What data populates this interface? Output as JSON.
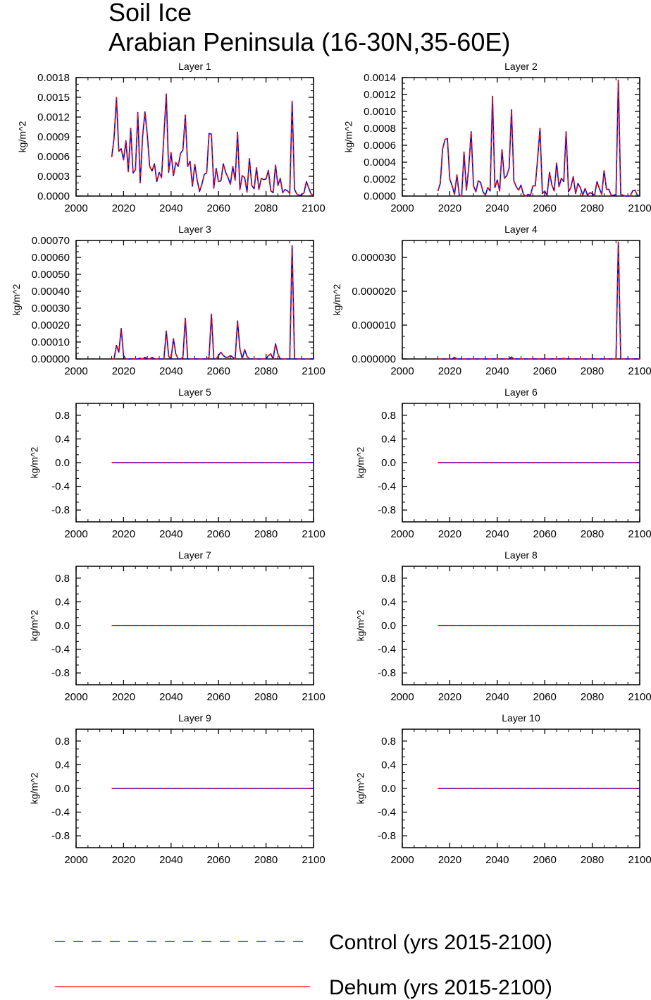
{
  "figure": {
    "title_line1": "Soil Ice",
    "title_line2": "Arabian Peninsula (16-30N,35-60E)"
  },
  "legend": [
    {
      "name": "Control (yrs 2015-2100)",
      "color": "#0000ff",
      "style": "dashed"
    },
    {
      "name": "Dehum (yrs 2015-2100)",
      "color": "#ff0000",
      "style": "solid"
    }
  ],
  "chart_data": [
    {
      "type": "line",
      "title": "Layer 1",
      "ylabel": "kg/m^2",
      "xlim": [
        2000,
        2100
      ],
      "ylim": [
        0,
        0.0018
      ],
      "xticks": [
        2000,
        2020,
        2040,
        2060,
        2080,
        2100
      ],
      "yticks": [
        0,
        0.0003,
        0.0006,
        0.0009,
        0.0012,
        0.0015,
        0.0018
      ],
      "ytick_labels": [
        "0.0000",
        "0.0003",
        "0.0006",
        "0.0009",
        "0.0012",
        "0.0015",
        "0.0018"
      ],
      "x_start": 2015,
      "values": [
        0.00059,
        0.00088,
        0.0015,
        0.00068,
        0.00072,
        0.00055,
        0.00084,
        0.00037,
        0.00103,
        0.00035,
        0.0004,
        0.00127,
        0.0002,
        0.0009,
        0.00128,
        0.00093,
        0.00045,
        0.00038,
        0.00049,
        0.00022,
        0.00036,
        0.00028,
        0.00093,
        0.00155,
        0.00036,
        0.00066,
        0.00031,
        0.00051,
        0.00045,
        0.00065,
        0.0007,
        0.00123,
        0.00045,
        0.00053,
        0.00015,
        0.00048,
        0.00024,
        7e-05,
        0.00018,
        0.00033,
        0.00035,
        0.00095,
        0.00094,
        0.00012,
        0.00042,
        0.00022,
        0.00023,
        0.00049,
        0.00036,
        0.00028,
        0.00018,
        0.00045,
        0.00024,
        0.00097,
        0.0001,
        0.00031,
        0.00028,
        6e-05,
        0.00057,
        0.00016,
        0.00011,
        0.00043,
        0.0001,
        0.00027,
        0.00025,
        0.00026,
        0.00039,
        8e-05,
        5e-05,
        0.00047,
        0.00016,
        0.00027,
        5e-05,
        0.0001,
        8e-05,
        4e-05,
        0.00144,
        0.0001,
        3e-05,
        1e-05,
        2e-05,
        5e-05,
        0.00022,
        0.00012,
        3e-05,
        1e-05
      ]
    },
    {
      "type": "line",
      "title": "Layer 2",
      "ylabel": "kg/m^2",
      "xlim": [
        2000,
        2100
      ],
      "ylim": [
        0,
        0.0014
      ],
      "xticks": [
        2000,
        2020,
        2040,
        2060,
        2080,
        2100
      ],
      "yticks": [
        0,
        0.0002,
        0.0004,
        0.0006,
        0.0008,
        0.001,
        0.0012,
        0.0014
      ],
      "ytick_labels": [
        "0.0000",
        "0.0002",
        "0.0004",
        "0.0006",
        "0.0008",
        "0.0010",
        "0.0012",
        "0.0014"
      ],
      "x_start": 2015,
      "values": [
        6e-05,
        0.00015,
        0.00056,
        0.00067,
        0.00068,
        0.0002,
        0.00012,
        2e-05,
        0.00025,
        1e-05,
        0.0,
        0.00052,
        7e-05,
        0.00034,
        0.00076,
        0.00012,
        5e-05,
        0.00018,
        0.00016,
        5e-05,
        1e-05,
        0.0001,
        6e-05,
        0.00118,
        0.0001,
        0.00019,
        6e-05,
        0.00055,
        0.00021,
        0.00024,
        0.00033,
        0.00102,
        0.00018,
        0.00011,
        7e-05,
        0.00013,
        2e-05,
        0.0,
        2e-05,
        1e-05,
        0.00012,
        0.00012,
        0.00044,
        0.0008,
        3e-05,
        6e-05,
        1e-05,
        0.00028,
        0.00013,
        6e-05,
        0.00039,
        0.00011,
        0.00021,
        0.00017,
        0.00076,
        5e-05,
        0.0001,
        0.00023,
        3e-05,
        0.00015,
        0.0001,
        1e-05,
        9e-05,
        1e-05,
        4e-05,
        3e-05,
        1e-05,
        0.00017,
        9e-05,
        2e-05,
        0.0003,
        8e-05,
        8e-05,
        1e-05,
        1e-05,
        2e-05,
        0.00137,
        2e-05,
        1e-05,
        0.0,
        0.0,
        0.0,
        6e-05,
        7e-05,
        1e-05,
        0.0
      ]
    },
    {
      "type": "line",
      "title": "Layer 3",
      "ylabel": "kg/m^2",
      "xlim": [
        2000,
        2100
      ],
      "ylim": [
        0,
        0.0007
      ],
      "xticks": [
        2000,
        2020,
        2040,
        2060,
        2080,
        2100
      ],
      "yticks": [
        0,
        0.0001,
        0.0002,
        0.0003,
        0.0004,
        0.0005,
        0.0006,
        0.0007
      ],
      "ytick_labels": [
        "0.00000",
        "0.00010",
        "0.00020",
        "0.00030",
        "0.00040",
        "0.00050",
        "0.00060",
        "0.00070"
      ],
      "x_start": 2015,
      "values": [
        0.0,
        0.0,
        8e-05,
        4e-05,
        0.00018,
        2e-05,
        0.0,
        0.0,
        0.0,
        0.0,
        0.0,
        0.0,
        5e-06,
        0.0,
        1e-05,
        0.0,
        0.0,
        1e-05,
        0.0,
        0.0,
        0.0,
        0.0,
        0.0,
        0.000165,
        1.5e-05,
        0.0,
        0.00012,
        3e-05,
        0.0,
        0.0,
        1e-05,
        0.00024,
        0.0,
        0.0,
        0.0,
        0.0,
        0.0,
        0.0,
        0.0,
        0.0,
        0.0,
        1e-05,
        0.000265,
        0.0,
        0.0,
        2e-05,
        4e-05,
        2e-05,
        1e-05,
        1e-05,
        2e-05,
        1e-05,
        0.0,
        0.000225,
        6e-05,
        0.0,
        5.5e-05,
        1.5e-05,
        0.0,
        0.0,
        0.0,
        0.0,
        0.0,
        0.0,
        0.0,
        0.0,
        2e-05,
        3e-05,
        0.0,
        9e-05,
        3e-05,
        0.0,
        0.0,
        0.0,
        0.0,
        0.0,
        0.00067,
        0.0,
        0.0,
        0.0,
        0.0,
        0.0,
        0.0,
        0.0,
        0.0,
        0.0
      ]
    },
    {
      "type": "line",
      "title": "Layer 4",
      "ylabel": "kg/m^2",
      "xlim": [
        2000,
        2100
      ],
      "ylim": [
        0,
        3.5e-05
      ],
      "xticks": [
        2000,
        2020,
        2040,
        2060,
        2080,
        2100
      ],
      "yticks": [
        0,
        1e-05,
        2e-05,
        3e-05
      ],
      "ytick_labels": [
        "0.000000",
        "0.000010",
        "0.000020",
        "0.000030"
      ],
      "x_start": 2015,
      "values": [
        0.0,
        0.0,
        0.0,
        0.0,
        0.0,
        0.0,
        0.0,
        5e-07,
        0.0,
        0.0,
        0.0,
        0.0,
        0.0,
        0.0,
        0.0,
        0.0,
        0.0,
        0.0,
        0.0,
        0.0,
        0.0,
        0.0,
        0.0,
        0.0,
        0.0,
        0.0,
        0.0,
        0.0,
        0.0,
        0.0,
        0.0,
        6e-07,
        0.0,
        0.0,
        0.0,
        0.0,
        0.0,
        0.0,
        0.0,
        0.0,
        0.0,
        0.0,
        0.0,
        0.0,
        0.0,
        0.0,
        0.0,
        0.0,
        0.0,
        0.0,
        0.0,
        0.0,
        0.0,
        2e-07,
        0.0,
        0.0,
        0.0,
        0.0,
        0.0,
        0.0,
        0.0,
        0.0,
        0.0,
        0.0,
        0.0,
        0.0,
        0.0,
        0.0,
        0.0,
        0.0,
        0.0,
        0.0,
        0.0,
        0.0,
        0.0,
        0.0,
        3.45e-05,
        0.0,
        0.0,
        0.0,
        0.0,
        0.0,
        0.0,
        0.0,
        0.0,
        0.0
      ]
    },
    {
      "type": "line",
      "title": "Layer 5",
      "ylabel": "kg/m^2",
      "xlim": [
        2000,
        2100
      ],
      "ylim": [
        -1,
        1
      ],
      "xticks": [
        2000,
        2020,
        2040,
        2060,
        2080,
        2100
      ],
      "yticks": [
        -0.8,
        -0.4,
        0,
        0.4,
        0.8
      ],
      "ytick_labels": [
        "-0.8",
        "-0.4",
        "0.0",
        "0.4",
        "0.8"
      ],
      "x_start": 2015,
      "constant": 0,
      "count": 86
    },
    {
      "type": "line",
      "title": "Layer 6",
      "ylabel": "kg/m^2",
      "xlim": [
        2000,
        2100
      ],
      "ylim": [
        -1,
        1
      ],
      "xticks": [
        2000,
        2020,
        2040,
        2060,
        2080,
        2100
      ],
      "yticks": [
        -0.8,
        -0.4,
        0,
        0.4,
        0.8
      ],
      "ytick_labels": [
        "-0.8",
        "-0.4",
        "0.0",
        "0.4",
        "0.8"
      ],
      "x_start": 2015,
      "constant": 0,
      "count": 86
    },
    {
      "type": "line",
      "title": "Layer 7",
      "ylabel": "kg/m^2",
      "xlim": [
        2000,
        2100
      ],
      "ylim": [
        -1,
        1
      ],
      "xticks": [
        2000,
        2020,
        2040,
        2060,
        2080,
        2100
      ],
      "yticks": [
        -0.8,
        -0.4,
        0,
        0.4,
        0.8
      ],
      "ytick_labels": [
        "-0.8",
        "-0.4",
        "0.0",
        "0.4",
        "0.8"
      ],
      "x_start": 2015,
      "constant": 0,
      "count": 86
    },
    {
      "type": "line",
      "title": "Layer 8",
      "ylabel": "kg/m^2",
      "xlim": [
        2000,
        2100
      ],
      "ylim": [
        -1,
        1
      ],
      "xticks": [
        2000,
        2020,
        2040,
        2060,
        2080,
        2100
      ],
      "yticks": [
        -0.8,
        -0.4,
        0,
        0.4,
        0.8
      ],
      "ytick_labels": [
        "-0.8",
        "-0.4",
        "0.0",
        "0.4",
        "0.8"
      ],
      "x_start": 2015,
      "constant": 0,
      "count": 86
    },
    {
      "type": "line",
      "title": "Layer 9",
      "ylabel": "kg/m^2",
      "xlim": [
        2000,
        2100
      ],
      "ylim": [
        -1,
        1
      ],
      "xticks": [
        2000,
        2020,
        2040,
        2060,
        2080,
        2100
      ],
      "yticks": [
        -0.8,
        -0.4,
        0,
        0.4,
        0.8
      ],
      "ytick_labels": [
        "-0.8",
        "-0.4",
        "0.0",
        "0.4",
        "0.8"
      ],
      "x_start": 2015,
      "constant": 0,
      "count": 86
    },
    {
      "type": "line",
      "title": "Layer 10",
      "ylabel": "kg/m^2",
      "xlim": [
        2000,
        2100
      ],
      "ylim": [
        -1,
        1
      ],
      "xticks": [
        2000,
        2020,
        2040,
        2060,
        2080,
        2100
      ],
      "yticks": [
        -0.8,
        -0.4,
        0,
        0.4,
        0.8
      ],
      "ytick_labels": [
        "-0.8",
        "-0.4",
        "0.0",
        "0.4",
        "0.8"
      ],
      "x_start": 2015,
      "constant": 0,
      "count": 86
    }
  ]
}
